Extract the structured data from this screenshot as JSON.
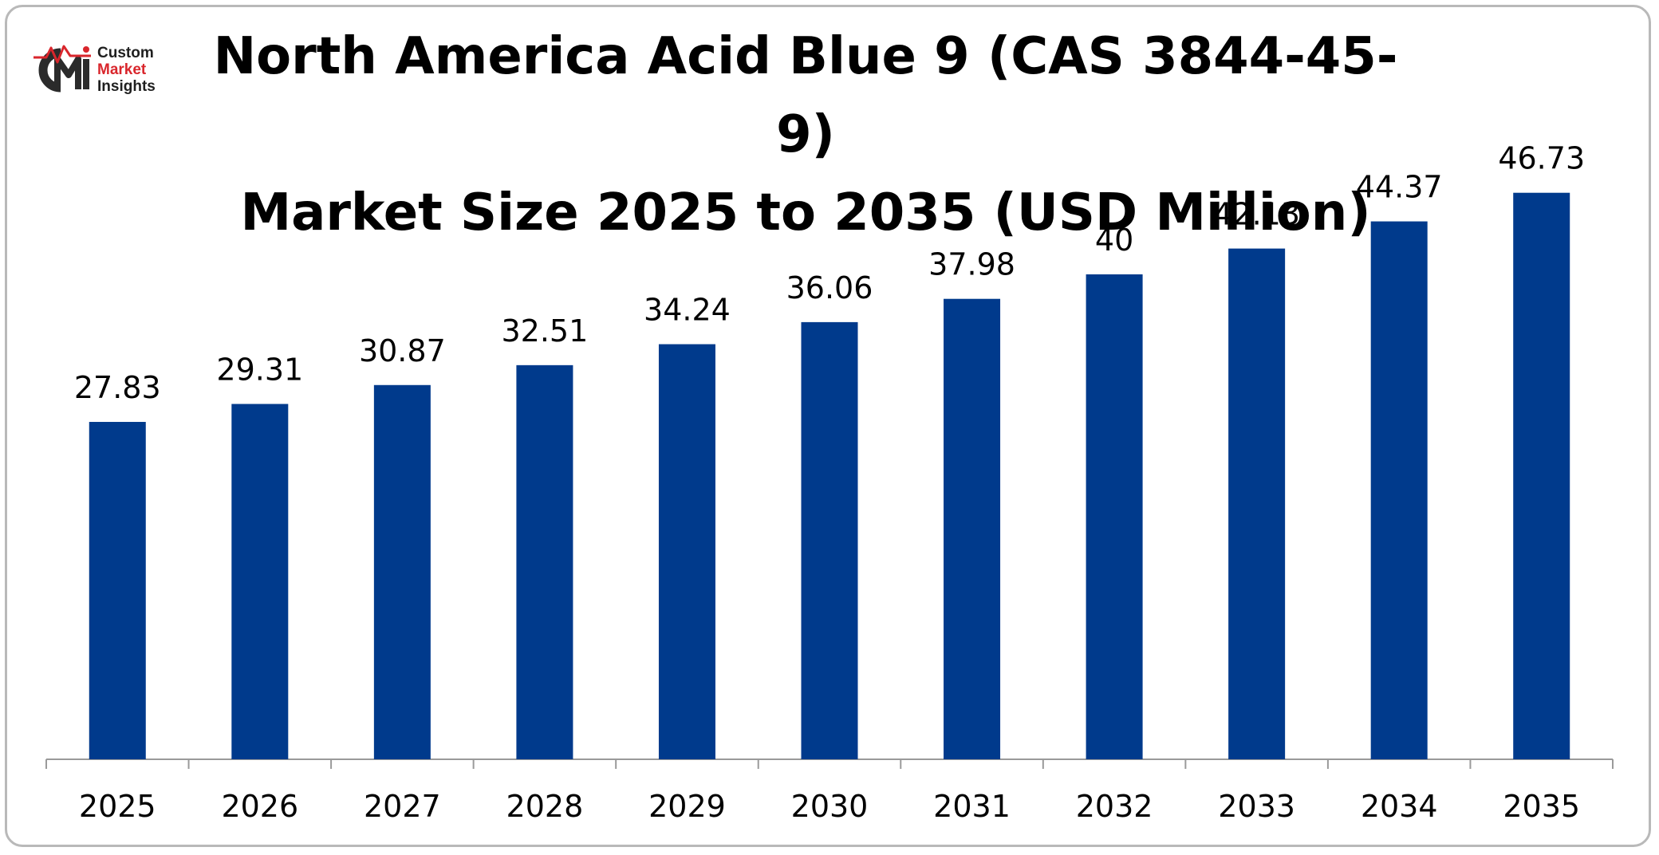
{
  "brand": {
    "logo_initials": "CMI",
    "name_line1": "Custom",
    "name_line2": "Market",
    "name_line3": "Insights"
  },
  "colors": {
    "bar": "#003a8c",
    "axis": "#9a9a9a",
    "brand_red": "#d9262c",
    "brand_dark": "#2b2b2b"
  },
  "chart_data": {
    "type": "bar",
    "title": "North America Acid Blue 9 (CAS 3844-45-9) Market Size 2025 to 2035 (USD Million)",
    "title_line1": "North America Acid Blue 9 (CAS 3844-45-9)",
    "title_line2": "Market Size 2025 to 2035 (USD Million)",
    "categories": [
      "2025",
      "2026",
      "2027",
      "2028",
      "2029",
      "2030",
      "2031",
      "2032",
      "2033",
      "2034",
      "2035"
    ],
    "values": [
      27.83,
      29.31,
      30.87,
      32.51,
      34.24,
      36.06,
      37.98,
      40,
      42.13,
      44.37,
      46.73
    ],
    "value_labels": [
      "27.83",
      "29.31",
      "30.87",
      "32.51",
      "34.24",
      "36.06",
      "37.98",
      "40",
      "42.13",
      "44.37",
      "46.73"
    ],
    "xlabel": "",
    "ylabel": "",
    "ylim": [
      0,
      50
    ],
    "grid": false,
    "legend": "none",
    "data_labels": "above-bars"
  }
}
